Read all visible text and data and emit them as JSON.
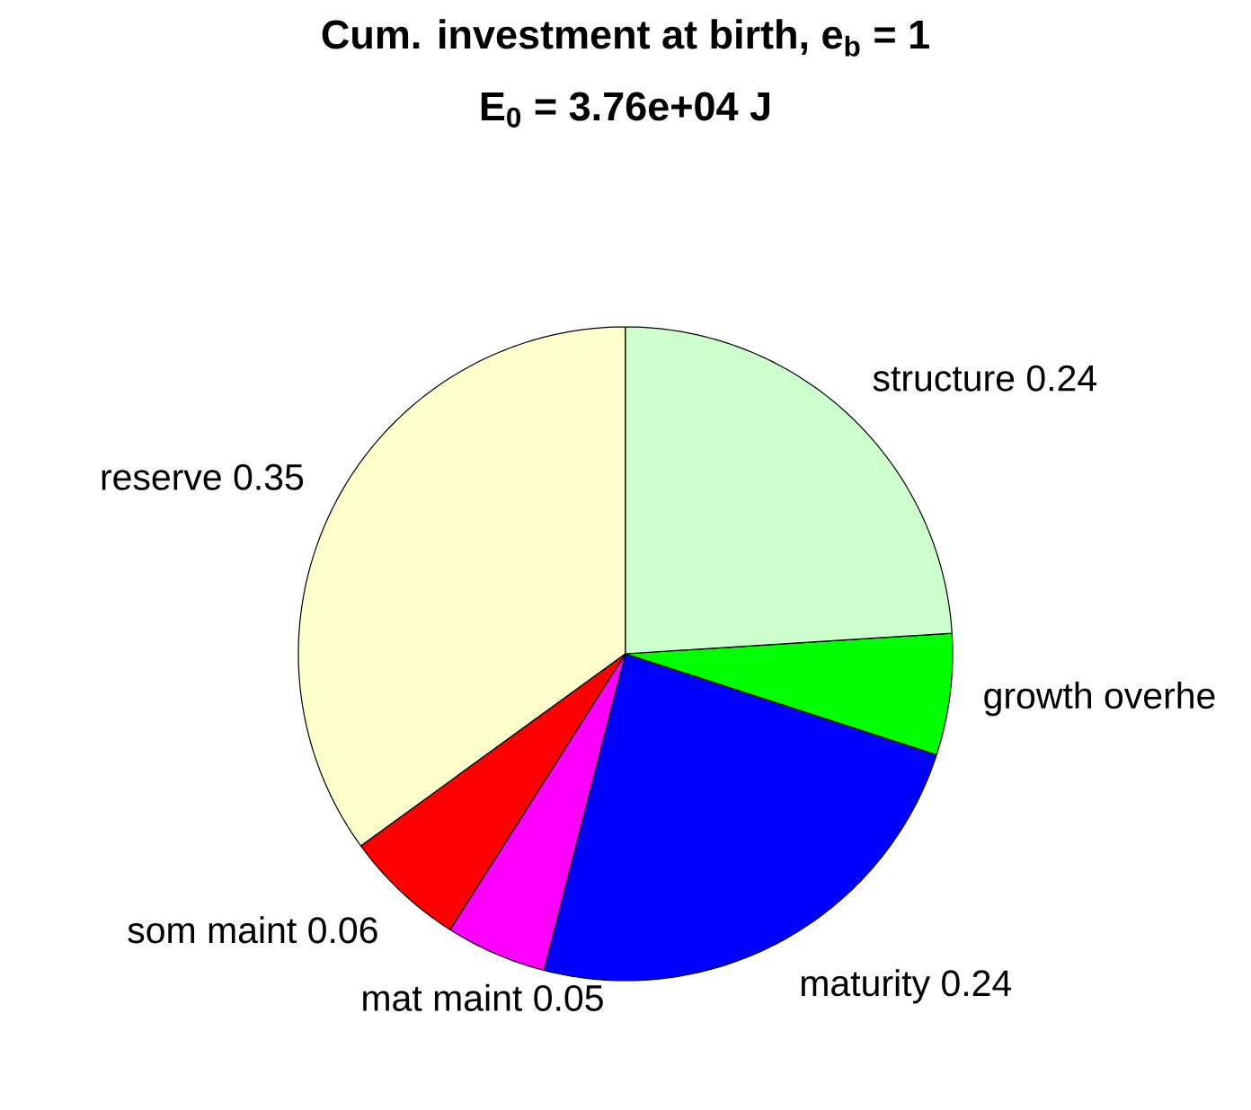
{
  "chart_data": {
    "type": "pie",
    "title": "Cum. investment at birth, e$_{b}$ = 1",
    "subtitle": "E$_{0}$ = 3.76e+04 J",
    "categories": [
      "reserve",
      "som maint",
      "mat maint",
      "maturity",
      "growth overhe",
      "structure"
    ],
    "values": [
      0.35,
      0.06,
      0.05,
      0.24,
      0.06,
      0.24
    ],
    "value_labels": [
      "0.35",
      "0.06",
      "0.05",
      "0.24",
      null,
      "0.24"
    ],
    "colors": [
      "#ffffcc",
      "#ff0000",
      "#ff00ff",
      "#0000ff",
      "#00ff00",
      "#ccffcc"
    ]
  }
}
